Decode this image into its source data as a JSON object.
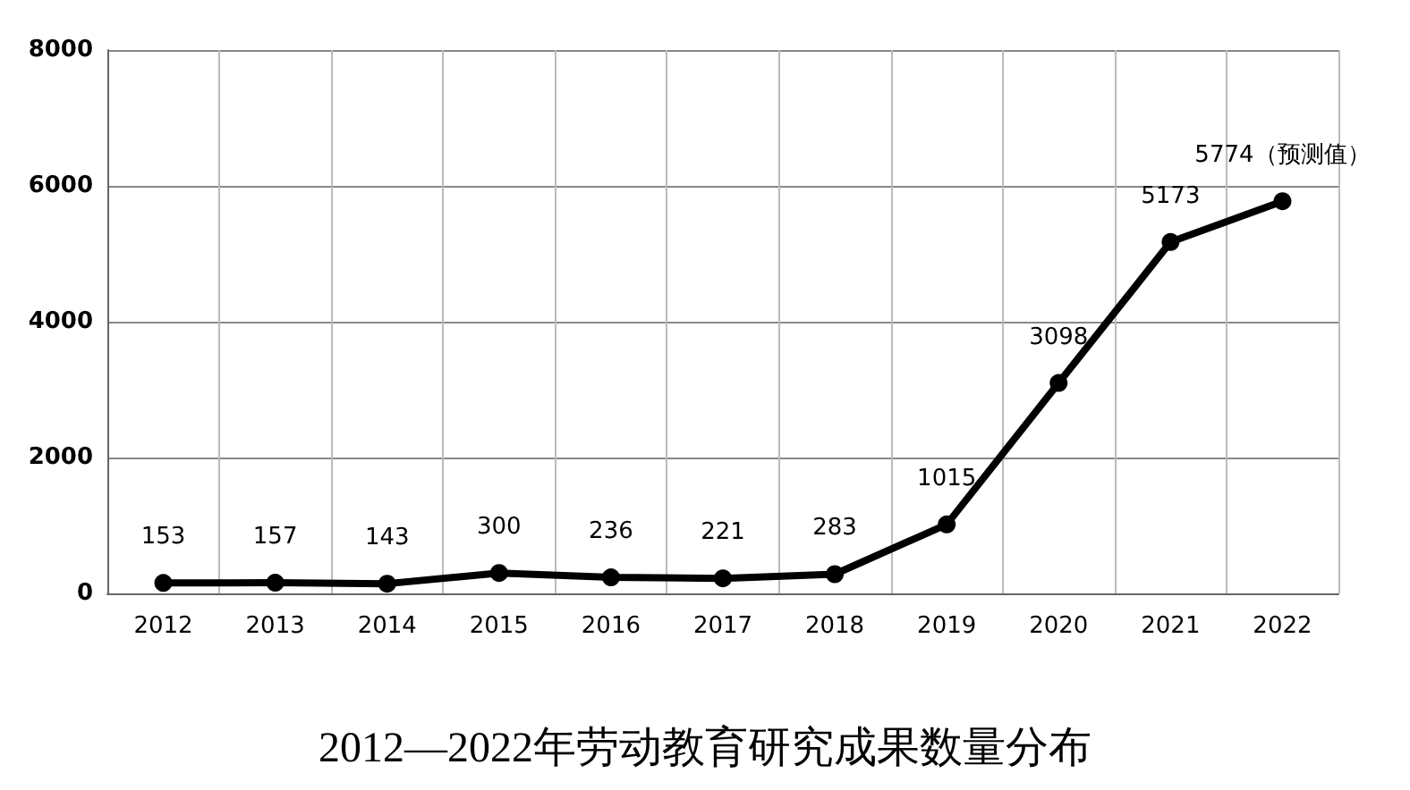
{
  "chart_data": {
    "type": "line",
    "title": "2012—2022年劳动教育研究成果数量分布",
    "categories": [
      "2012",
      "2013",
      "2014",
      "2015",
      "2016",
      "2017",
      "2018",
      "2019",
      "2020",
      "2021",
      "2022"
    ],
    "series": [
      {
        "color": "#000000",
        "values": [
          153,
          157,
          143,
          300,
          236,
          221,
          283,
          1015,
          3098,
          5173,
          5774
        ],
        "value_labels": [
          "153",
          "157",
          "143",
          "300",
          "236",
          "221",
          "283",
          "1015",
          "3098",
          "5173",
          "5774（预测值）"
        ]
      }
    ],
    "ylim": [
      0,
      8000
    ],
    "yticks": [
      0,
      2000,
      4000,
      6000,
      8000
    ],
    "grid": true,
    "marker": "circle",
    "line_style": "solid"
  }
}
